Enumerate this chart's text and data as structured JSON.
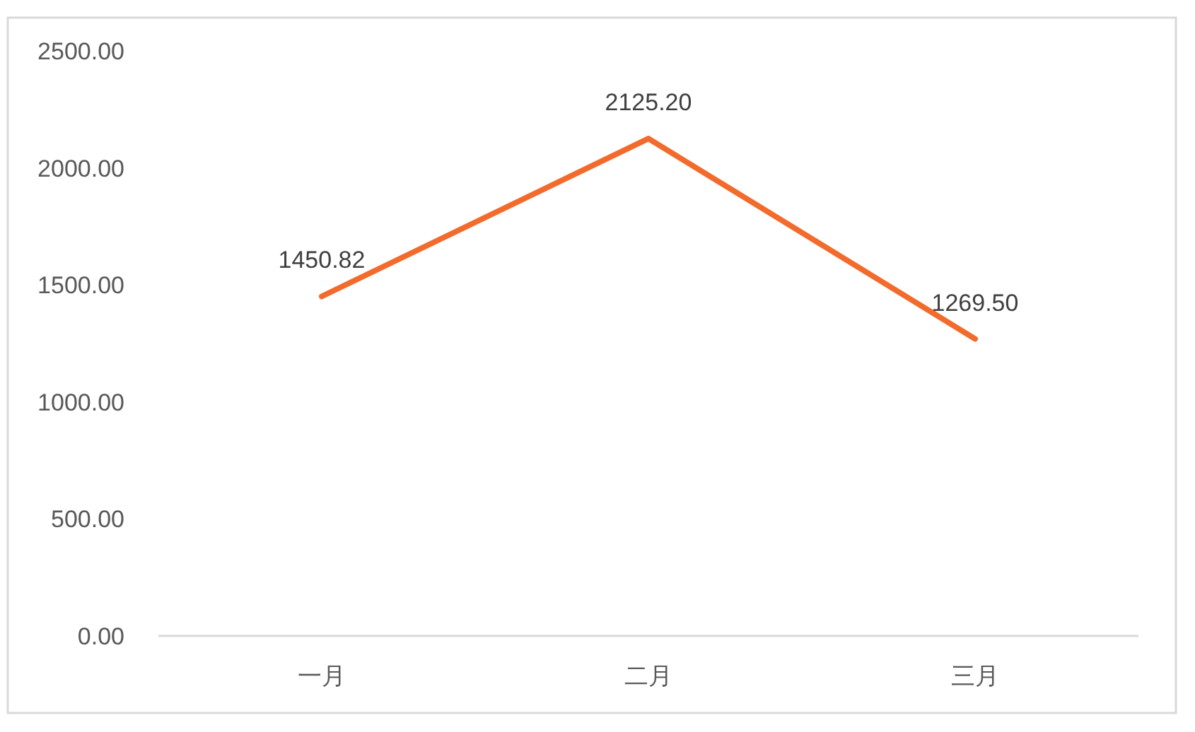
{
  "chart_data": {
    "type": "line",
    "categories": [
      "一月",
      "二月",
      "三月"
    ],
    "series": [
      {
        "color": "#f36b2c",
        "values": [
          1450.82,
          2125.2,
          1269.5
        ]
      }
    ],
    "value_labels": [
      "1450.82",
      "2125.20",
      "1269.50"
    ],
    "ylim": [
      0,
      2500
    ],
    "yticks": [
      {
        "value": 0,
        "label": "0.00"
      },
      {
        "value": 500,
        "label": "500.00"
      },
      {
        "value": 1000,
        "label": "1000.00"
      },
      {
        "value": 1500,
        "label": "1500.00"
      },
      {
        "value": 2000,
        "label": "2000.00"
      },
      {
        "value": 2500,
        "label": "2500.00"
      }
    ],
    "marker": "none",
    "line_style": "solid"
  }
}
